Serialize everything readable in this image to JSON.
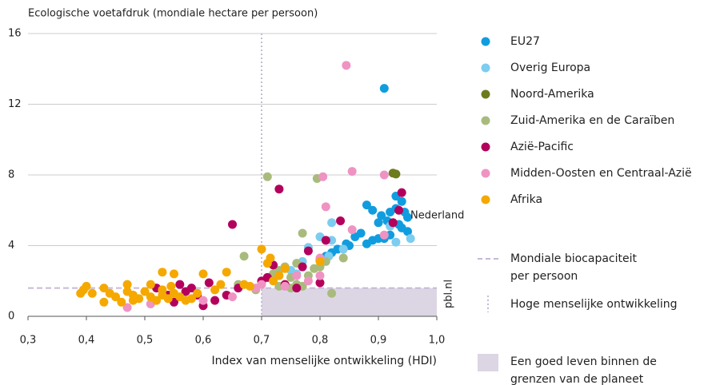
{
  "chart_data": {
    "type": "scatter",
    "ylabel": "Ecologische voetafdruk (mondiale hectare per persoon)",
    "xlabel": "Index van menselijke ontwikkeling (HDI)",
    "xlim": [
      0.3,
      1.0
    ],
    "ylim": [
      0,
      16
    ],
    "xticks": [
      {
        "value": 0.3,
        "label": "0,3"
      },
      {
        "value": 0.4,
        "label": "0,4"
      },
      {
        "value": 0.5,
        "label": "0,5"
      },
      {
        "value": 0.6,
        "label": "0,6"
      },
      {
        "value": 0.7,
        "label": "0,7"
      },
      {
        "value": 0.8,
        "label": "0,8"
      },
      {
        "value": 0.9,
        "label": "0,9"
      },
      {
        "value": 1.0,
        "label": "1,0"
      }
    ],
    "yticks": [
      0,
      4,
      8,
      12,
      16
    ],
    "grid": true,
    "annotation": "Nederland",
    "source": "pbl.nl",
    "reference": {
      "biocapacity": 1.6,
      "biocapacity_label": [
        "Mondiale biocapaciteit",
        "per persoon"
      ],
      "biocapacity_color": "#c5bad6",
      "high_hdi": 0.7,
      "high_hdi_label": "Hoge menselijke ontwikkeling",
      "high_hdi_color": "#c5bad6",
      "region_label": [
        "Een goed leven binnen de",
        "grenzen van de planeet"
      ],
      "region_color": "#dcd6e4"
    },
    "series": [
      {
        "name": "EU27",
        "color": "#109ddf",
        "x": [
          0.91,
          0.93,
          0.94,
          0.945,
          0.95,
          0.93,
          0.92,
          0.905,
          0.9,
          0.89,
          0.88,
          0.87,
          0.88,
          0.89,
          0.9,
          0.91,
          0.92,
          0.94,
          0.95,
          0.86,
          0.85,
          0.83,
          0.82,
          0.81,
          0.8,
          0.845,
          0.915,
          0.935
        ],
        "values": [
          12.9,
          6.8,
          6.5,
          5.9,
          5.6,
          6.1,
          5.9,
          5.7,
          5.3,
          6.0,
          6.3,
          4.7,
          4.1,
          4.3,
          4.4,
          4.4,
          4.6,
          5.0,
          4.8,
          4.5,
          4.0,
          3.8,
          3.6,
          3.4,
          3.2,
          4.1,
          5.4,
          5.2
        ]
      },
      {
        "name": "Overig Europa",
        "color": "#7ccdef",
        "x": [
          0.93,
          0.955,
          0.92,
          0.82,
          0.8,
          0.78,
          0.77,
          0.75,
          0.76,
          0.82,
          0.84,
          0.815
        ],
        "values": [
          4.2,
          4.4,
          5.1,
          5.3,
          4.5,
          3.9,
          3.1,
          2.6,
          2.4,
          4.3,
          3.8,
          3.4
        ]
      },
      {
        "name": "Noord-Amerika",
        "color": "#6b7c1c",
        "x": [
          0.925,
          0.93
        ],
        "values": [
          8.1,
          8.05
        ]
      },
      {
        "name": "Zuid-Amerika en de Caraïben",
        "color": "#a9bb7c",
        "x": [
          0.71,
          0.795,
          0.77,
          0.67,
          0.76,
          0.74,
          0.75,
          0.76,
          0.77,
          0.72,
          0.73,
          0.78,
          0.79,
          0.8,
          0.81,
          0.84,
          0.82,
          0.73,
          0.69,
          0.66,
          0.7,
          0.75
        ],
        "values": [
          7.9,
          7.8,
          4.7,
          3.4,
          3.0,
          2.8,
          2.2,
          1.8,
          1.7,
          2.4,
          2.6,
          2.3,
          2.7,
          2.8,
          3.1,
          3.3,
          1.3,
          1.7,
          1.5,
          1.8,
          1.9,
          1.6
        ]
      },
      {
        "name": "Azië-Pacific",
        "color": "#b3005d",
        "x": [
          0.65,
          0.73,
          0.94,
          0.935,
          0.925,
          0.835,
          0.81,
          0.78,
          0.72,
          0.71,
          0.7,
          0.74,
          0.76,
          0.62,
          0.6,
          0.59,
          0.58,
          0.56,
          0.55,
          0.52,
          0.54,
          0.57,
          0.64,
          0.61,
          0.66,
          0.8,
          0.77
        ],
        "values": [
          5.2,
          7.2,
          7.0,
          6.0,
          5.3,
          5.4,
          4.3,
          3.7,
          2.9,
          2.2,
          2.0,
          1.8,
          1.6,
          0.9,
          0.6,
          1.2,
          1.6,
          1.8,
          0.8,
          1.6,
          1.2,
          1.4,
          1.2,
          1.9,
          1.6,
          1.9,
          2.8
        ]
      },
      {
        "name": "Midden-Oosten en Centraal-Azië",
        "color": "#ef93c3",
        "x": [
          0.845,
          0.855,
          0.91,
          0.805,
          0.81,
          0.855,
          0.91,
          0.8,
          0.78,
          0.74,
          0.76,
          0.7,
          0.69,
          0.65,
          0.6,
          0.51,
          0.47,
          0.8
        ],
        "values": [
          14.2,
          8.2,
          8.0,
          7.9,
          6.2,
          4.9,
          4.6,
          3.3,
          2.0,
          1.7,
          2.3,
          1.8,
          1.6,
          1.1,
          0.9,
          0.7,
          0.5,
          2.3
        ]
      },
      {
        "name": "Afrika",
        "color": "#f5a800",
        "x": [
          0.395,
          0.4,
          0.41,
          0.43,
          0.44,
          0.43,
          0.45,
          0.46,
          0.47,
          0.47,
          0.48,
          0.48,
          0.49,
          0.5,
          0.51,
          0.52,
          0.53,
          0.53,
          0.54,
          0.55,
          0.55,
          0.53,
          0.56,
          0.57,
          0.58,
          0.59,
          0.6,
          0.62,
          0.63,
          0.64,
          0.67,
          0.68,
          0.7,
          0.71,
          0.715,
          0.72,
          0.73,
          0.74,
          0.8,
          0.51,
          0.545,
          0.39
        ],
        "values": [
          1.5,
          1.7,
          1.3,
          0.8,
          1.3,
          1.6,
          1.1,
          0.8,
          1.4,
          1.8,
          1.2,
          0.9,
          1.0,
          1.4,
          1.1,
          0.9,
          1.2,
          1.5,
          1.0,
          1.3,
          2.4,
          2.5,
          1.1,
          0.9,
          1.0,
          1.3,
          2.4,
          1.5,
          1.8,
          2.5,
          1.8,
          1.7,
          3.8,
          3.0,
          3.3,
          2.0,
          2.3,
          2.7,
          3.1,
          1.8,
          1.7,
          1.3
        ]
      }
    ]
  }
}
